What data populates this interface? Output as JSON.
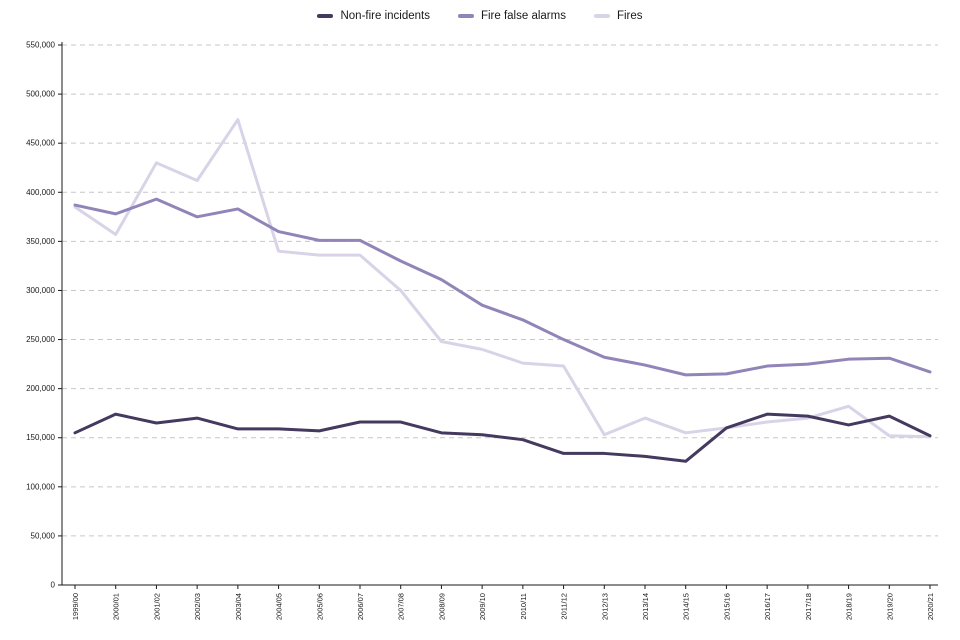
{
  "chart_data": {
    "type": "line",
    "title": "",
    "xlabel": "",
    "ylabel": "",
    "categories": [
      "1999/00",
      "2000/01",
      "2001/02",
      "2002/03",
      "2003/04",
      "2004/05",
      "2005/06",
      "2006/07",
      "2007/08",
      "2008/09",
      "2009/10",
      "2010/11",
      "2011/12",
      "2012/13",
      "2013/14",
      "2014/15",
      "2015/16",
      "2016/17",
      "2017/18",
      "2018/19",
      "2019/20",
      "2020/21"
    ],
    "series": [
      {
        "name": "Non-fire incidents",
        "color": "#44395e",
        "values": [
          155000,
          174000,
          165000,
          170000,
          159000,
          159000,
          157000,
          166000,
          166000,
          155000,
          153000,
          148000,
          134000,
          134000,
          131000,
          126000,
          160000,
          174000,
          172000,
          163000,
          172000,
          152000
        ]
      },
      {
        "name": "Fire false alarms",
        "color": "#9184b8",
        "values": [
          387000,
          378000,
          393000,
          375000,
          383000,
          360000,
          351000,
          351000,
          330000,
          311000,
          285000,
          270000,
          250000,
          232000,
          224000,
          214000,
          215000,
          223000,
          225000,
          230000,
          231000,
          217000
        ]
      },
      {
        "name": "Fires",
        "color": "#d9d3e8",
        "values": [
          385000,
          357000,
          430000,
          412000,
          474000,
          340000,
          336000,
          336000,
          300000,
          248000,
          240000,
          226000,
          223000,
          153000,
          170000,
          155000,
          160000,
          166000,
          170000,
          182000,
          152000,
          151000
        ]
      }
    ],
    "ylim": [
      0,
      550000
    ],
    "y_ticks": [
      0,
      50000,
      100000,
      150000,
      200000,
      250000,
      300000,
      350000,
      400000,
      450000,
      500000,
      550000
    ],
    "y_tick_labels": [
      "0",
      "50,000",
      "100,000",
      "150,000",
      "200,000",
      "250,000",
      "300,000",
      "350,000",
      "400,000",
      "450,000",
      "500,000",
      "550,000"
    ],
    "grid": "horizontal-dashed",
    "grid_color": "#c7c7c7",
    "axis_color": "#1a1a1a",
    "legend_position": "top-center",
    "draw_order": [
      2,
      1,
      0
    ]
  }
}
